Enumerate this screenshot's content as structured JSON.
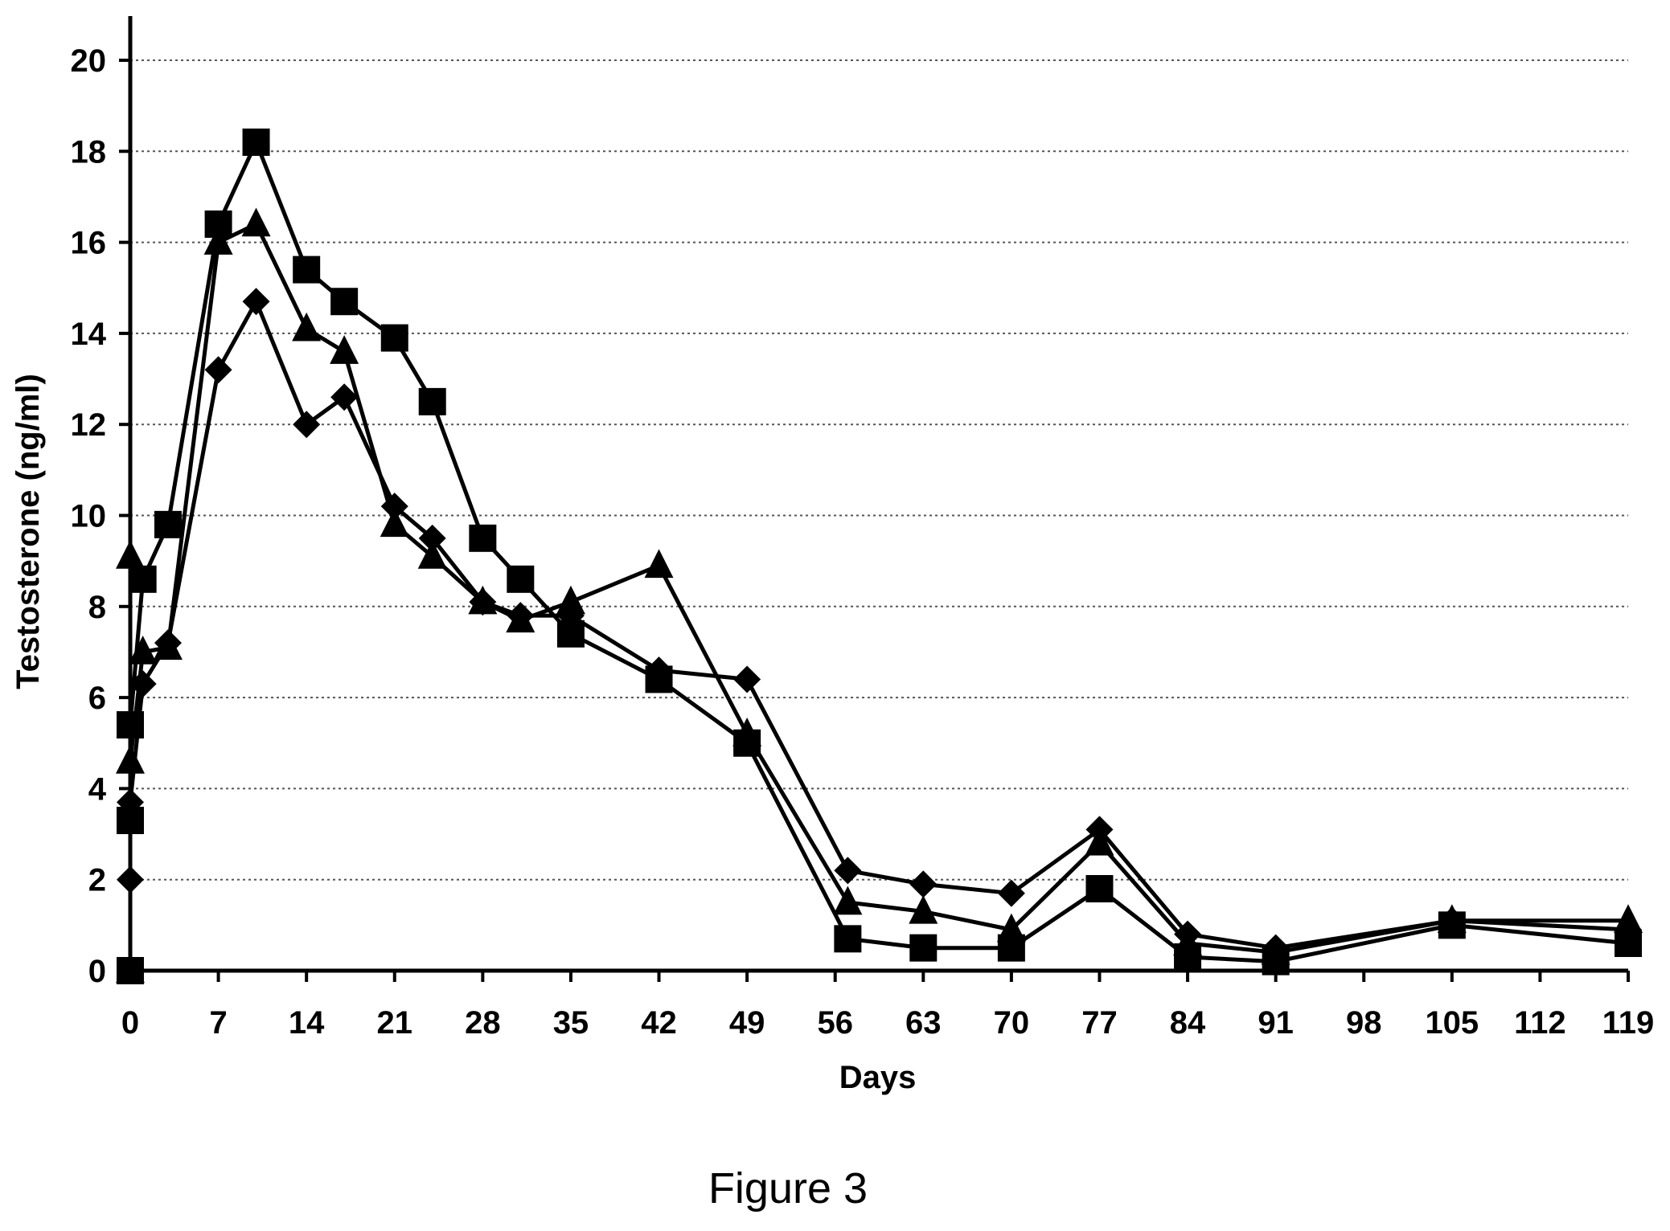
{
  "chart_data": {
    "type": "line",
    "xlabel": "Days",
    "ylabel": "Testosterone (ng/ml)",
    "caption": "Figure 3",
    "xlim": [
      0,
      119
    ],
    "ylim": [
      0,
      20
    ],
    "x_ticks": [
      0,
      7,
      14,
      21,
      28,
      35,
      42,
      49,
      56,
      63,
      70,
      77,
      84,
      91,
      98,
      105,
      112,
      119
    ],
    "y_ticks": [
      0,
      2,
      4,
      6,
      8,
      10,
      12,
      14,
      16,
      18,
      20
    ],
    "grid": "horizontal dotted",
    "legend": "none",
    "colors": {
      "line": "#000000",
      "grid": "#555555"
    },
    "series": [
      {
        "marker": "diamond",
        "points": [
          [
            0,
            0
          ],
          [
            0,
            2
          ],
          [
            0,
            3.7
          ],
          [
            1,
            6.3
          ],
          [
            3,
            7.2
          ],
          [
            7,
            13.2
          ],
          [
            10,
            14.7
          ],
          [
            14,
            12
          ],
          [
            17,
            12.6
          ],
          [
            21,
            10.2
          ],
          [
            24,
            9.5
          ],
          [
            28,
            8.1
          ],
          [
            31,
            7.8
          ],
          [
            35,
            7.8
          ],
          [
            42,
            6.6
          ],
          [
            49,
            6.4
          ],
          [
            57,
            2.2
          ],
          [
            63,
            1.9
          ],
          [
            70,
            1.7
          ],
          [
            77,
            3.1
          ],
          [
            84,
            0.8
          ],
          [
            91,
            0.5
          ],
          [
            105,
            1.1
          ],
          [
            119,
            0.9
          ]
        ]
      },
      {
        "marker": "triangle",
        "points": [
          [
            0,
            0
          ],
          [
            0,
            9.1
          ],
          [
            0,
            4.6
          ],
          [
            1,
            7
          ],
          [
            3,
            7.1
          ],
          [
            7,
            16
          ],
          [
            10,
            16.4
          ],
          [
            14,
            14.1
          ],
          [
            17,
            13.6
          ],
          [
            21,
            9.8
          ],
          [
            24,
            9.1
          ],
          [
            28,
            8.1
          ],
          [
            31,
            7.7
          ],
          [
            35,
            8.1
          ],
          [
            42,
            8.9
          ],
          [
            49,
            5.2
          ],
          [
            57,
            1.5
          ],
          [
            63,
            1.3
          ],
          [
            70,
            0.9
          ],
          [
            77,
            2.8
          ],
          [
            84,
            0.6
          ],
          [
            91,
            0.4
          ],
          [
            105,
            1.1
          ],
          [
            119,
            1.1
          ]
        ]
      },
      {
        "marker": "square",
        "points": [
          [
            0,
            0
          ],
          [
            0,
            3.3
          ],
          [
            0,
            5.4
          ],
          [
            1,
            8.6
          ],
          [
            3,
            9.8
          ],
          [
            7,
            16.4
          ],
          [
            10,
            18.2
          ],
          [
            14,
            15.4
          ],
          [
            17,
            14.7
          ],
          [
            21,
            13.9
          ],
          [
            24,
            12.5
          ],
          [
            28,
            9.5
          ],
          [
            31,
            8.6
          ],
          [
            35,
            7.4
          ],
          [
            42,
            6.4
          ],
          [
            49,
            5
          ],
          [
            57,
            0.7
          ],
          [
            63,
            0.5
          ],
          [
            70,
            0.5
          ],
          [
            77,
            1.8
          ],
          [
            84,
            0.3
          ],
          [
            91,
            0.2
          ],
          [
            105,
            1
          ],
          [
            119,
            0.6
          ]
        ]
      }
    ]
  }
}
